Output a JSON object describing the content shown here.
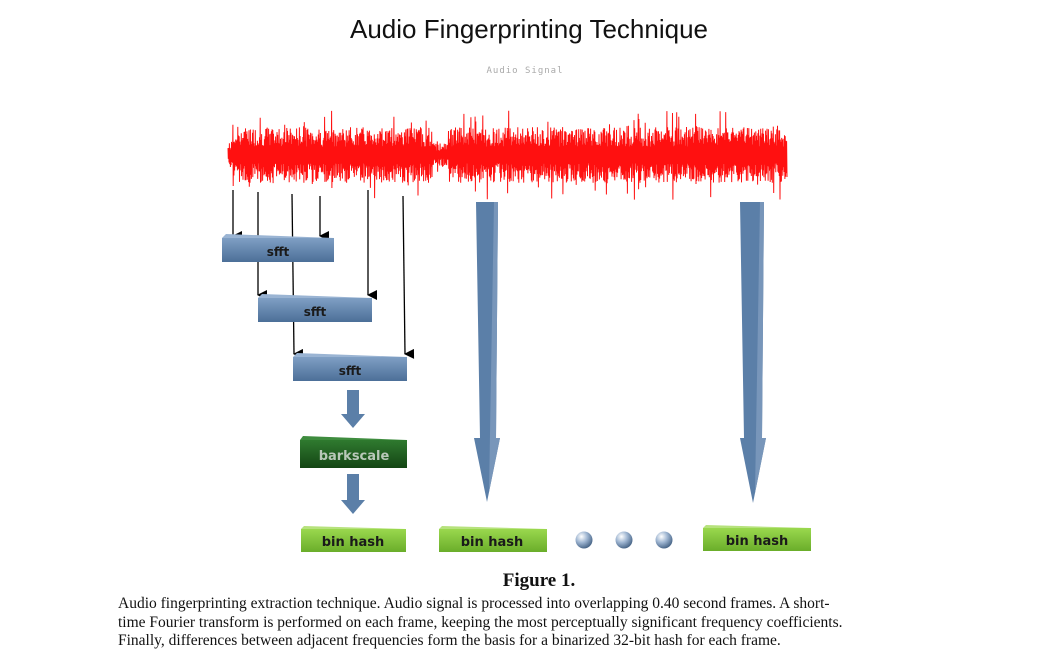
{
  "title": "Audio Fingerprinting Technique",
  "signal_label": "Audio Signal",
  "stages": {
    "stft_label": "sfft",
    "barkscale_label": "barkscale",
    "hash_label": "bin hash"
  },
  "colors": {
    "waveform": "#ff1010",
    "stft_box": "#5b7fa8",
    "barkscale_box": "#1f5a1f",
    "hash_box": "#7fc43a",
    "big_arrow": "#5b7fa8",
    "ellipsis_dot": "#8fa7c4"
  },
  "caption": {
    "title": "Figure 1.",
    "lines": [
      "Audio fingerprinting extraction technique.  Audio signal is processed into overlapping 0.40 second frames.  A short-",
      "time Fourier transform is performed on each frame, keeping the most perceptually significant frequency coefficients.",
      " Finally, differences between adjacent frequencies form the basis for a binarized 32-bit hash for each frame."
    ]
  }
}
